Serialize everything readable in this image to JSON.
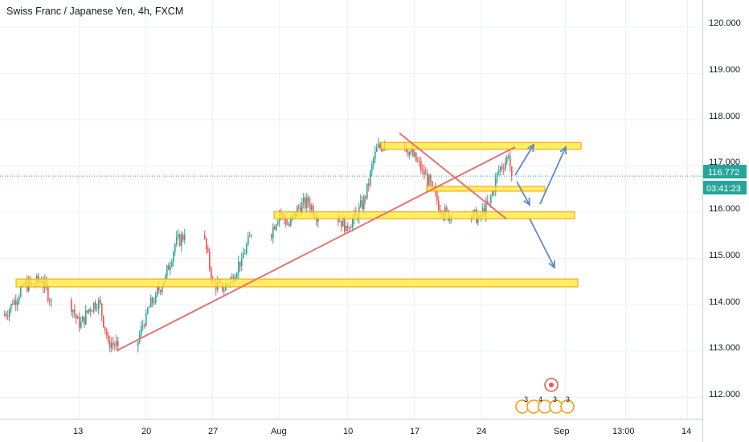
{
  "header": {
    "title": "Swiss Franc / Japanese Yen, 4h, FXCM"
  },
  "price_axis": {
    "labels": [
      "120.000",
      "119.000",
      "118.000",
      "117.000",
      "116.000",
      "115.000",
      "114.000",
      "113.000",
      "112.000"
    ],
    "last_price": "116.772",
    "countdown": "03:41:23"
  },
  "time_axis": {
    "labels": [
      "13",
      "20",
      "27",
      "Aug",
      "10",
      "17",
      "24",
      "Sep",
      "13:00",
      "14"
    ]
  },
  "events": {
    "labels": [
      "3",
      "4",
      "3",
      "3"
    ]
  },
  "colors": {
    "bull": "#26a69a",
    "bear": "#ef5350",
    "zone_fill": "#ffeb3b",
    "zone_border": "#ff9800",
    "trend": "#e57373",
    "arrow": "#5b8cc8",
    "badge": "#26a69a",
    "last_line": "#26a69a"
  },
  "chart_data": {
    "type": "candlestick",
    "title": "Swiss Franc / Japanese Yen, 4h, FXCM",
    "y_range": [
      111.6,
      120.5
    ],
    "last_price": 116.772,
    "waypoints_close": [
      [
        "Jul 6",
        114.0
      ],
      [
        "Jul 7",
        114.4
      ],
      [
        "Jul 8",
        114.45
      ],
      [
        "Jul 9",
        114.5
      ],
      [
        "Jul 10",
        114.1
      ],
      [
        "Jul 13",
        113.5
      ],
      [
        "Jul 14",
        113.9
      ],
      [
        "Jul 15",
        114.1
      ],
      [
        "Jul 16",
        113.2
      ],
      [
        "Jul 17",
        113.1
      ],
      [
        "Jul 20",
        113.8
      ],
      [
        "Jul 21",
        114.2
      ],
      [
        "Jul 22",
        114.6
      ],
      [
        "Jul 23",
        115.3
      ],
      [
        "Jul 24",
        115.5
      ],
      [
        "Jul 27",
        114.5
      ],
      [
        "Jul 28",
        114.3
      ],
      [
        "Jul 29",
        114.6
      ],
      [
        "Jul 30",
        115.0
      ],
      [
        "Jul 31",
        115.5
      ],
      [
        "Aug 3",
        116.0
      ],
      [
        "Aug 4",
        115.7
      ],
      [
        "Aug 5",
        116.1
      ],
      [
        "Aug 6",
        116.2
      ],
      [
        "Aug 7",
        115.9
      ],
      [
        "Aug 10",
        115.7
      ],
      [
        "Aug 11",
        115.9
      ],
      [
        "Aug 12",
        116.3
      ],
      [
        "Aug 13",
        117.3
      ],
      [
        "Aug 14",
        117.5
      ],
      [
        "Aug 17",
        117.2
      ],
      [
        "Aug 18",
        116.9
      ],
      [
        "Aug 19",
        116.5
      ],
      [
        "Aug 20",
        116.0
      ],
      [
        "Aug 21",
        115.9
      ],
      [
        "Aug 24",
        115.9
      ],
      [
        "Aug 25",
        116.2
      ],
      [
        "Aug 26",
        116.9
      ],
      [
        "Aug 27",
        117.2
      ],
      [
        "Aug 27 late",
        116.772
      ]
    ],
    "zones": [
      {
        "name": "resistance",
        "top": 117.5,
        "bottom": 117.35
      },
      {
        "name": "mid",
        "top": 116.55,
        "bottom": 116.45
      },
      {
        "name": "support",
        "top": 116.0,
        "bottom": 115.85
      },
      {
        "name": "base",
        "top": 114.55,
        "bottom": 114.38
      }
    ]
  }
}
